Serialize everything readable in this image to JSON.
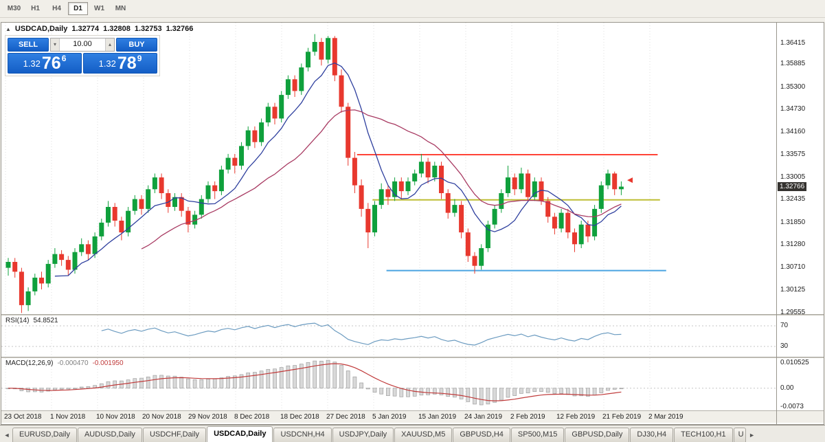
{
  "timeframe_toolbar": {
    "buttons": [
      "M30",
      "H1",
      "H4",
      "D1",
      "W1",
      "MN"
    ],
    "active": "D1"
  },
  "chart_header": {
    "collapse_icon": "▲",
    "symbol": "USDCAD,Daily",
    "open": "1.32774",
    "high": "1.32808",
    "low": "1.32753",
    "close": "1.32766"
  },
  "trade_panel": {
    "sell_label": "SELL",
    "buy_label": "BUY",
    "volume": "10.00",
    "volume_down_icon": "▾",
    "volume_up_icon": "▴",
    "sell_price_main": "1.32",
    "sell_price_big": "76",
    "sell_price_sup": "6",
    "buy_price_main": "1.32",
    "buy_price_big": "78",
    "buy_price_sup": "9"
  },
  "current_price_label": "1.32766",
  "tabs": {
    "nav_left": "◄",
    "nav_right": "►",
    "items": [
      "EURUSD,Daily",
      "AUDUSD,Daily",
      "USDCHF,Daily",
      "USDCAD,Daily",
      "USDCNH,H4",
      "USDJPY,Daily",
      "XAUUSD,M5",
      "GBPUSD,H4",
      "SP500,M15",
      "GBPUSD,Daily",
      "DJ30,H4",
      "TECH100,H1",
      "U"
    ],
    "active": "USDCAD,Daily"
  },
  "colors": {
    "bull": "#0fa03c",
    "bear": "#e8382e",
    "ma_fast": "#2e3f9e",
    "ma_slow": "#a83a62",
    "hline_red": "#ff4336",
    "hline_yellow": "#bdbd33",
    "hline_blue": "#4aa3e0",
    "rsi_line": "#6b9bc0",
    "macd_hist_fill": "#d9d9d9",
    "macd_hist_stroke": "#9f9f9f",
    "macd_signal": "#c03a3a",
    "button_blue": "#2f7fe2",
    "price_badge_bg": "#34322f"
  },
  "chart_data": {
    "type": "candlestick",
    "symbol": "USDCAD",
    "timeframe": "Daily",
    "y_ticks": [
      "1.36415",
      "1.35885",
      "1.35300",
      "1.34730",
      "1.34160",
      "1.33575",
      "1.33005",
      "1.32435",
      "1.31850",
      "1.31280",
      "1.30710",
      "1.30125",
      "1.29555"
    ],
    "x_labels": [
      "23 Oct 2018",
      "1 Nov 2018",
      "10 Nov 2018",
      "20 Nov 2018",
      "29 Nov 2018",
      "8 Dec 2018",
      "18 Dec 2018",
      "27 Dec 2018",
      "5 Jan 2019",
      "15 Jan 2019",
      "24 Jan 2019",
      "2 Feb 2019",
      "12 Feb 2019",
      "21 Feb 2019",
      "2 Mar 2019"
    ],
    "price_range": [
      1.2952,
      1.3694
    ],
    "candles": [
      [
        1.307,
        1.3095,
        1.305,
        1.3085
      ],
      [
        1.3085,
        1.3095,
        1.3045,
        1.306
      ],
      [
        1.306,
        1.307,
        1.2955,
        1.2975
      ],
      [
        1.2975,
        1.302,
        1.296,
        1.301
      ],
      [
        1.301,
        1.3055,
        1.3,
        1.3045
      ],
      [
        1.3045,
        1.306,
        1.3015,
        1.303
      ],
      [
        1.303,
        1.309,
        1.302,
        1.308
      ],
      [
        1.308,
        1.312,
        1.307,
        1.3105
      ],
      [
        1.3105,
        1.3115,
        1.3075,
        1.309
      ],
      [
        1.309,
        1.31,
        1.305,
        1.3065
      ],
      [
        1.3065,
        1.312,
        1.3055,
        1.311
      ],
      [
        1.311,
        1.3145,
        1.31,
        1.313
      ],
      [
        1.313,
        1.314,
        1.309,
        1.3105
      ],
      [
        1.3105,
        1.316,
        1.3095,
        1.315
      ],
      [
        1.315,
        1.3195,
        1.314,
        1.3185
      ],
      [
        1.3185,
        1.324,
        1.3175,
        1.3225
      ],
      [
        1.3225,
        1.3235,
        1.3175,
        1.319
      ],
      [
        1.319,
        1.32,
        1.314,
        1.316
      ],
      [
        1.316,
        1.3225,
        1.315,
        1.3215
      ],
      [
        1.3215,
        1.3255,
        1.3205,
        1.3245
      ],
      [
        1.3245,
        1.3255,
        1.3205,
        1.322
      ],
      [
        1.322,
        1.328,
        1.321,
        1.327
      ],
      [
        1.327,
        1.331,
        1.326,
        1.33
      ],
      [
        1.33,
        1.331,
        1.3245,
        1.326
      ],
      [
        1.326,
        1.327,
        1.321,
        1.3225
      ],
      [
        1.3225,
        1.326,
        1.3215,
        1.325
      ],
      [
        1.325,
        1.326,
        1.32,
        1.3215
      ],
      [
        1.3215,
        1.3225,
        1.316,
        1.318
      ],
      [
        1.318,
        1.3215,
        1.317,
        1.3205
      ],
      [
        1.3205,
        1.3255,
        1.3195,
        1.3245
      ],
      [
        1.3245,
        1.329,
        1.3235,
        1.328
      ],
      [
        1.328,
        1.329,
        1.3245,
        1.3265
      ],
      [
        1.3265,
        1.333,
        1.3255,
        1.332
      ],
      [
        1.332,
        1.336,
        1.331,
        1.335
      ],
      [
        1.335,
        1.336,
        1.331,
        1.333
      ],
      [
        1.333,
        1.339,
        1.332,
        1.338
      ],
      [
        1.338,
        1.343,
        1.337,
        1.342
      ],
      [
        1.342,
        1.343,
        1.3375,
        1.339
      ],
      [
        1.339,
        1.345,
        1.338,
        1.344
      ],
      [
        1.344,
        1.349,
        1.343,
        1.348
      ],
      [
        1.348,
        1.349,
        1.3435,
        1.345
      ],
      [
        1.345,
        1.352,
        1.344,
        1.351
      ],
      [
        1.351,
        1.356,
        1.35,
        1.355
      ],
      [
        1.355,
        1.356,
        1.3505,
        1.352
      ],
      [
        1.352,
        1.359,
        1.351,
        1.358
      ],
      [
        1.358,
        1.363,
        1.357,
        1.362
      ],
      [
        1.362,
        1.3665,
        1.361,
        1.3645
      ],
      [
        1.3645,
        1.3655,
        1.3585,
        1.36
      ],
      [
        1.36,
        1.366,
        1.359,
        1.3655
      ],
      [
        1.3655,
        1.366,
        1.3545,
        1.356
      ],
      [
        1.356,
        1.3575,
        1.3465,
        1.348
      ],
      [
        1.348,
        1.349,
        1.333,
        1.335
      ],
      [
        1.335,
        1.3365,
        1.326,
        1.328
      ],
      [
        1.328,
        1.3295,
        1.32,
        1.322
      ],
      [
        1.322,
        1.3235,
        1.312,
        1.316
      ],
      [
        1.316,
        1.324,
        1.315,
        1.323
      ],
      [
        1.323,
        1.3285,
        1.322,
        1.327
      ],
      [
        1.327,
        1.328,
        1.323,
        1.325
      ],
      [
        1.325,
        1.33,
        1.324,
        1.329
      ],
      [
        1.329,
        1.33,
        1.3245,
        1.3265
      ],
      [
        1.3265,
        1.33,
        1.3255,
        1.329
      ],
      [
        1.329,
        1.332,
        1.328,
        1.331
      ],
      [
        1.331,
        1.336,
        1.33,
        1.334
      ],
      [
        1.334,
        1.335,
        1.3285,
        1.33
      ],
      [
        1.33,
        1.334,
        1.329,
        1.333
      ],
      [
        1.333,
        1.334,
        1.3245,
        1.326
      ],
      [
        1.326,
        1.327,
        1.3195,
        1.321
      ],
      [
        1.321,
        1.3245,
        1.32,
        1.323
      ],
      [
        1.323,
        1.324,
        1.3145,
        1.316
      ],
      [
        1.316,
        1.317,
        1.3085,
        1.31
      ],
      [
        1.31,
        1.311,
        1.3055,
        1.3075
      ],
      [
        1.3075,
        1.313,
        1.3065,
        1.312
      ],
      [
        1.312,
        1.319,
        1.311,
        1.318
      ],
      [
        1.318,
        1.323,
        1.317,
        1.322
      ],
      [
        1.322,
        1.327,
        1.321,
        1.326
      ],
      [
        1.326,
        1.333,
        1.325,
        1.33
      ],
      [
        1.33,
        1.331,
        1.3255,
        1.327
      ],
      [
        1.327,
        1.3325,
        1.326,
        1.331
      ],
      [
        1.331,
        1.332,
        1.324,
        1.325
      ],
      [
        1.325,
        1.33,
        1.324,
        1.329
      ],
      [
        1.329,
        1.33,
        1.323,
        1.324
      ],
      [
        1.324,
        1.325,
        1.3185,
        1.32
      ],
      [
        1.32,
        1.321,
        1.3155,
        1.317
      ],
      [
        1.317,
        1.322,
        1.316,
        1.321
      ],
      [
        1.321,
        1.322,
        1.3145,
        1.316
      ],
      [
        1.316,
        1.317,
        1.311,
        1.313
      ],
      [
        1.313,
        1.319,
        1.312,
        1.318
      ],
      [
        1.318,
        1.319,
        1.3135,
        1.315
      ],
      [
        1.315,
        1.323,
        1.314,
        1.322
      ],
      [
        1.322,
        1.329,
        1.321,
        1.328
      ],
      [
        1.328,
        1.332,
        1.327,
        1.331
      ],
      [
        1.331,
        1.3315,
        1.3255,
        1.327
      ],
      [
        1.327,
        1.329,
        1.3255,
        1.32766
      ]
    ],
    "overlays": {
      "ma_fast_period": 8,
      "ma_slow_period": 21,
      "hlines": [
        {
          "price": 1.3358,
          "color_key": "hline_red",
          "from_frac": 0.459,
          "to_frac": 0.847
        },
        {
          "price": 1.3243,
          "color_key": "hline_yellow",
          "from_frac": 0.479,
          "to_frac": 0.85
        },
        {
          "price": 1.3063,
          "color_key": "hline_blue",
          "from_frac": 0.497,
          "to_frac": 0.858
        }
      ],
      "last_bar_marker": {
        "price": 1.3293,
        "color_key": "bear"
      }
    },
    "indicators": {
      "rsi": {
        "label": "RSI(14)",
        "value": "54.8521",
        "period": 14,
        "levels": [
          70,
          30
        ],
        "level_labels": [
          "70",
          "30"
        ]
      },
      "macd": {
        "label": "MACD(12,26,9)",
        "value_main": "-0.000470",
        "value_signal": "-0.001950",
        "fast": 12,
        "slow": 26,
        "signal": 9,
        "axis_labels": [
          "0.010525",
          "0.00",
          "-0.0073"
        ],
        "scale": [
          -0.0085,
          0.0115
        ]
      }
    }
  }
}
